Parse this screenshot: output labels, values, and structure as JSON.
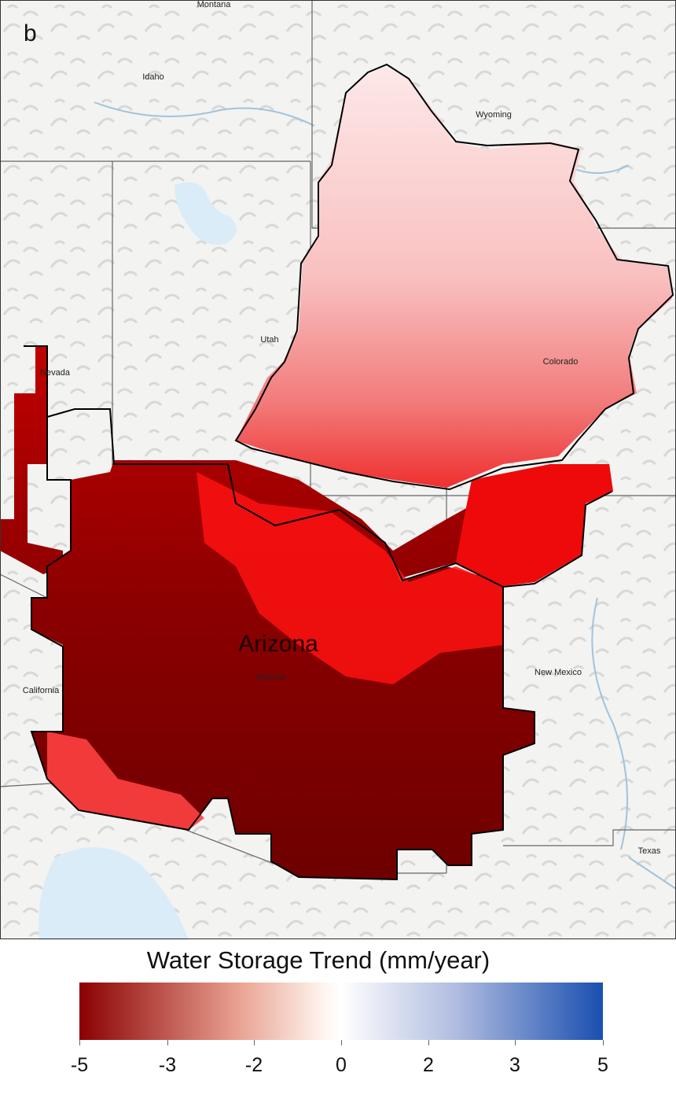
{
  "panel": {
    "letter": "b"
  },
  "map": {
    "title_label": "Arizona",
    "state_labels": [
      "Montana",
      "Idaho",
      "Wyoming",
      "Utah",
      "Nevada",
      "Colorado",
      "California",
      "Arizona",
      "New Mexico",
      "Texas"
    ],
    "colors": {
      "background": "#f4f4f2",
      "water": "#d9ecf7",
      "trend_strong": "#7a0000",
      "trend_high": "#c80000",
      "trend_mid": "#ff1010",
      "trend_low": "#ff7a7a",
      "trend_weak": "#fbd0d0",
      "trend_faint": "#fde6e6"
    }
  },
  "legend": {
    "title": "Water Storage Trend (mm/year)",
    "ticks": [
      "-5",
      "-3",
      "-2",
      "0",
      "2",
      "3",
      "5"
    ],
    "colors": [
      "#8b0000",
      "#e8a090",
      "#fff6f0",
      "#ffffff",
      "#b0bce0",
      "#1a4fb0"
    ]
  }
}
